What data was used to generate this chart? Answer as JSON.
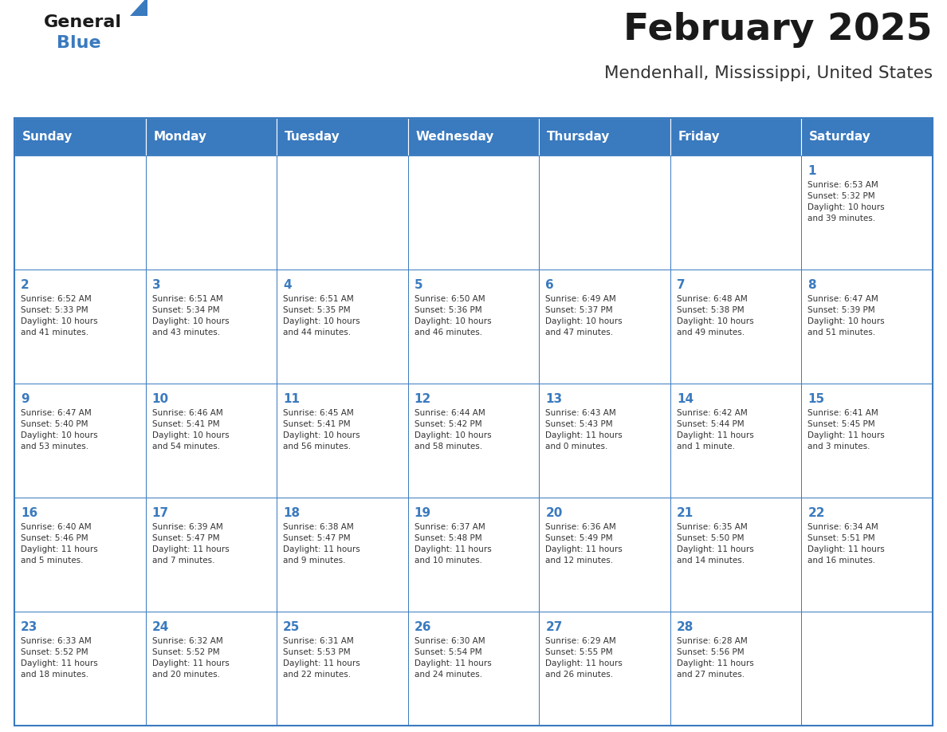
{
  "title": "February 2025",
  "subtitle": "Mendenhall, Mississippi, United States",
  "header_bg": "#3a7abf",
  "header_text_color": "#ffffff",
  "cell_bg": "#ffffff",
  "border_color": "#3a7abf",
  "text_color": "#333333",
  "day_number_color": "#3a7abf",
  "days_of_week": [
    "Sunday",
    "Monday",
    "Tuesday",
    "Wednesday",
    "Thursday",
    "Friday",
    "Saturday"
  ],
  "logo_general_color": "#1a1a1a",
  "logo_blue_color": "#3a7abf",
  "weeks": [
    [
      {
        "day": 0,
        "info": ""
      },
      {
        "day": 0,
        "info": ""
      },
      {
        "day": 0,
        "info": ""
      },
      {
        "day": 0,
        "info": ""
      },
      {
        "day": 0,
        "info": ""
      },
      {
        "day": 0,
        "info": ""
      },
      {
        "day": 1,
        "info": "Sunrise: 6:53 AM\nSunset: 5:32 PM\nDaylight: 10 hours\nand 39 minutes."
      }
    ],
    [
      {
        "day": 2,
        "info": "Sunrise: 6:52 AM\nSunset: 5:33 PM\nDaylight: 10 hours\nand 41 minutes."
      },
      {
        "day": 3,
        "info": "Sunrise: 6:51 AM\nSunset: 5:34 PM\nDaylight: 10 hours\nand 43 minutes."
      },
      {
        "day": 4,
        "info": "Sunrise: 6:51 AM\nSunset: 5:35 PM\nDaylight: 10 hours\nand 44 minutes."
      },
      {
        "day": 5,
        "info": "Sunrise: 6:50 AM\nSunset: 5:36 PM\nDaylight: 10 hours\nand 46 minutes."
      },
      {
        "day": 6,
        "info": "Sunrise: 6:49 AM\nSunset: 5:37 PM\nDaylight: 10 hours\nand 47 minutes."
      },
      {
        "day": 7,
        "info": "Sunrise: 6:48 AM\nSunset: 5:38 PM\nDaylight: 10 hours\nand 49 minutes."
      },
      {
        "day": 8,
        "info": "Sunrise: 6:47 AM\nSunset: 5:39 PM\nDaylight: 10 hours\nand 51 minutes."
      }
    ],
    [
      {
        "day": 9,
        "info": "Sunrise: 6:47 AM\nSunset: 5:40 PM\nDaylight: 10 hours\nand 53 minutes."
      },
      {
        "day": 10,
        "info": "Sunrise: 6:46 AM\nSunset: 5:41 PM\nDaylight: 10 hours\nand 54 minutes."
      },
      {
        "day": 11,
        "info": "Sunrise: 6:45 AM\nSunset: 5:41 PM\nDaylight: 10 hours\nand 56 minutes."
      },
      {
        "day": 12,
        "info": "Sunrise: 6:44 AM\nSunset: 5:42 PM\nDaylight: 10 hours\nand 58 minutes."
      },
      {
        "day": 13,
        "info": "Sunrise: 6:43 AM\nSunset: 5:43 PM\nDaylight: 11 hours\nand 0 minutes."
      },
      {
        "day": 14,
        "info": "Sunrise: 6:42 AM\nSunset: 5:44 PM\nDaylight: 11 hours\nand 1 minute."
      },
      {
        "day": 15,
        "info": "Sunrise: 6:41 AM\nSunset: 5:45 PM\nDaylight: 11 hours\nand 3 minutes."
      }
    ],
    [
      {
        "day": 16,
        "info": "Sunrise: 6:40 AM\nSunset: 5:46 PM\nDaylight: 11 hours\nand 5 minutes."
      },
      {
        "day": 17,
        "info": "Sunrise: 6:39 AM\nSunset: 5:47 PM\nDaylight: 11 hours\nand 7 minutes."
      },
      {
        "day": 18,
        "info": "Sunrise: 6:38 AM\nSunset: 5:47 PM\nDaylight: 11 hours\nand 9 minutes."
      },
      {
        "day": 19,
        "info": "Sunrise: 6:37 AM\nSunset: 5:48 PM\nDaylight: 11 hours\nand 10 minutes."
      },
      {
        "day": 20,
        "info": "Sunrise: 6:36 AM\nSunset: 5:49 PM\nDaylight: 11 hours\nand 12 minutes."
      },
      {
        "day": 21,
        "info": "Sunrise: 6:35 AM\nSunset: 5:50 PM\nDaylight: 11 hours\nand 14 minutes."
      },
      {
        "day": 22,
        "info": "Sunrise: 6:34 AM\nSunset: 5:51 PM\nDaylight: 11 hours\nand 16 minutes."
      }
    ],
    [
      {
        "day": 23,
        "info": "Sunrise: 6:33 AM\nSunset: 5:52 PM\nDaylight: 11 hours\nand 18 minutes."
      },
      {
        "day": 24,
        "info": "Sunrise: 6:32 AM\nSunset: 5:52 PM\nDaylight: 11 hours\nand 20 minutes."
      },
      {
        "day": 25,
        "info": "Sunrise: 6:31 AM\nSunset: 5:53 PM\nDaylight: 11 hours\nand 22 minutes."
      },
      {
        "day": 26,
        "info": "Sunrise: 6:30 AM\nSunset: 5:54 PM\nDaylight: 11 hours\nand 24 minutes."
      },
      {
        "day": 27,
        "info": "Sunrise: 6:29 AM\nSunset: 5:55 PM\nDaylight: 11 hours\nand 26 minutes."
      },
      {
        "day": 28,
        "info": "Sunrise: 6:28 AM\nSunset: 5:56 PM\nDaylight: 11 hours\nand 27 minutes."
      },
      {
        "day": 0,
        "info": ""
      }
    ]
  ]
}
